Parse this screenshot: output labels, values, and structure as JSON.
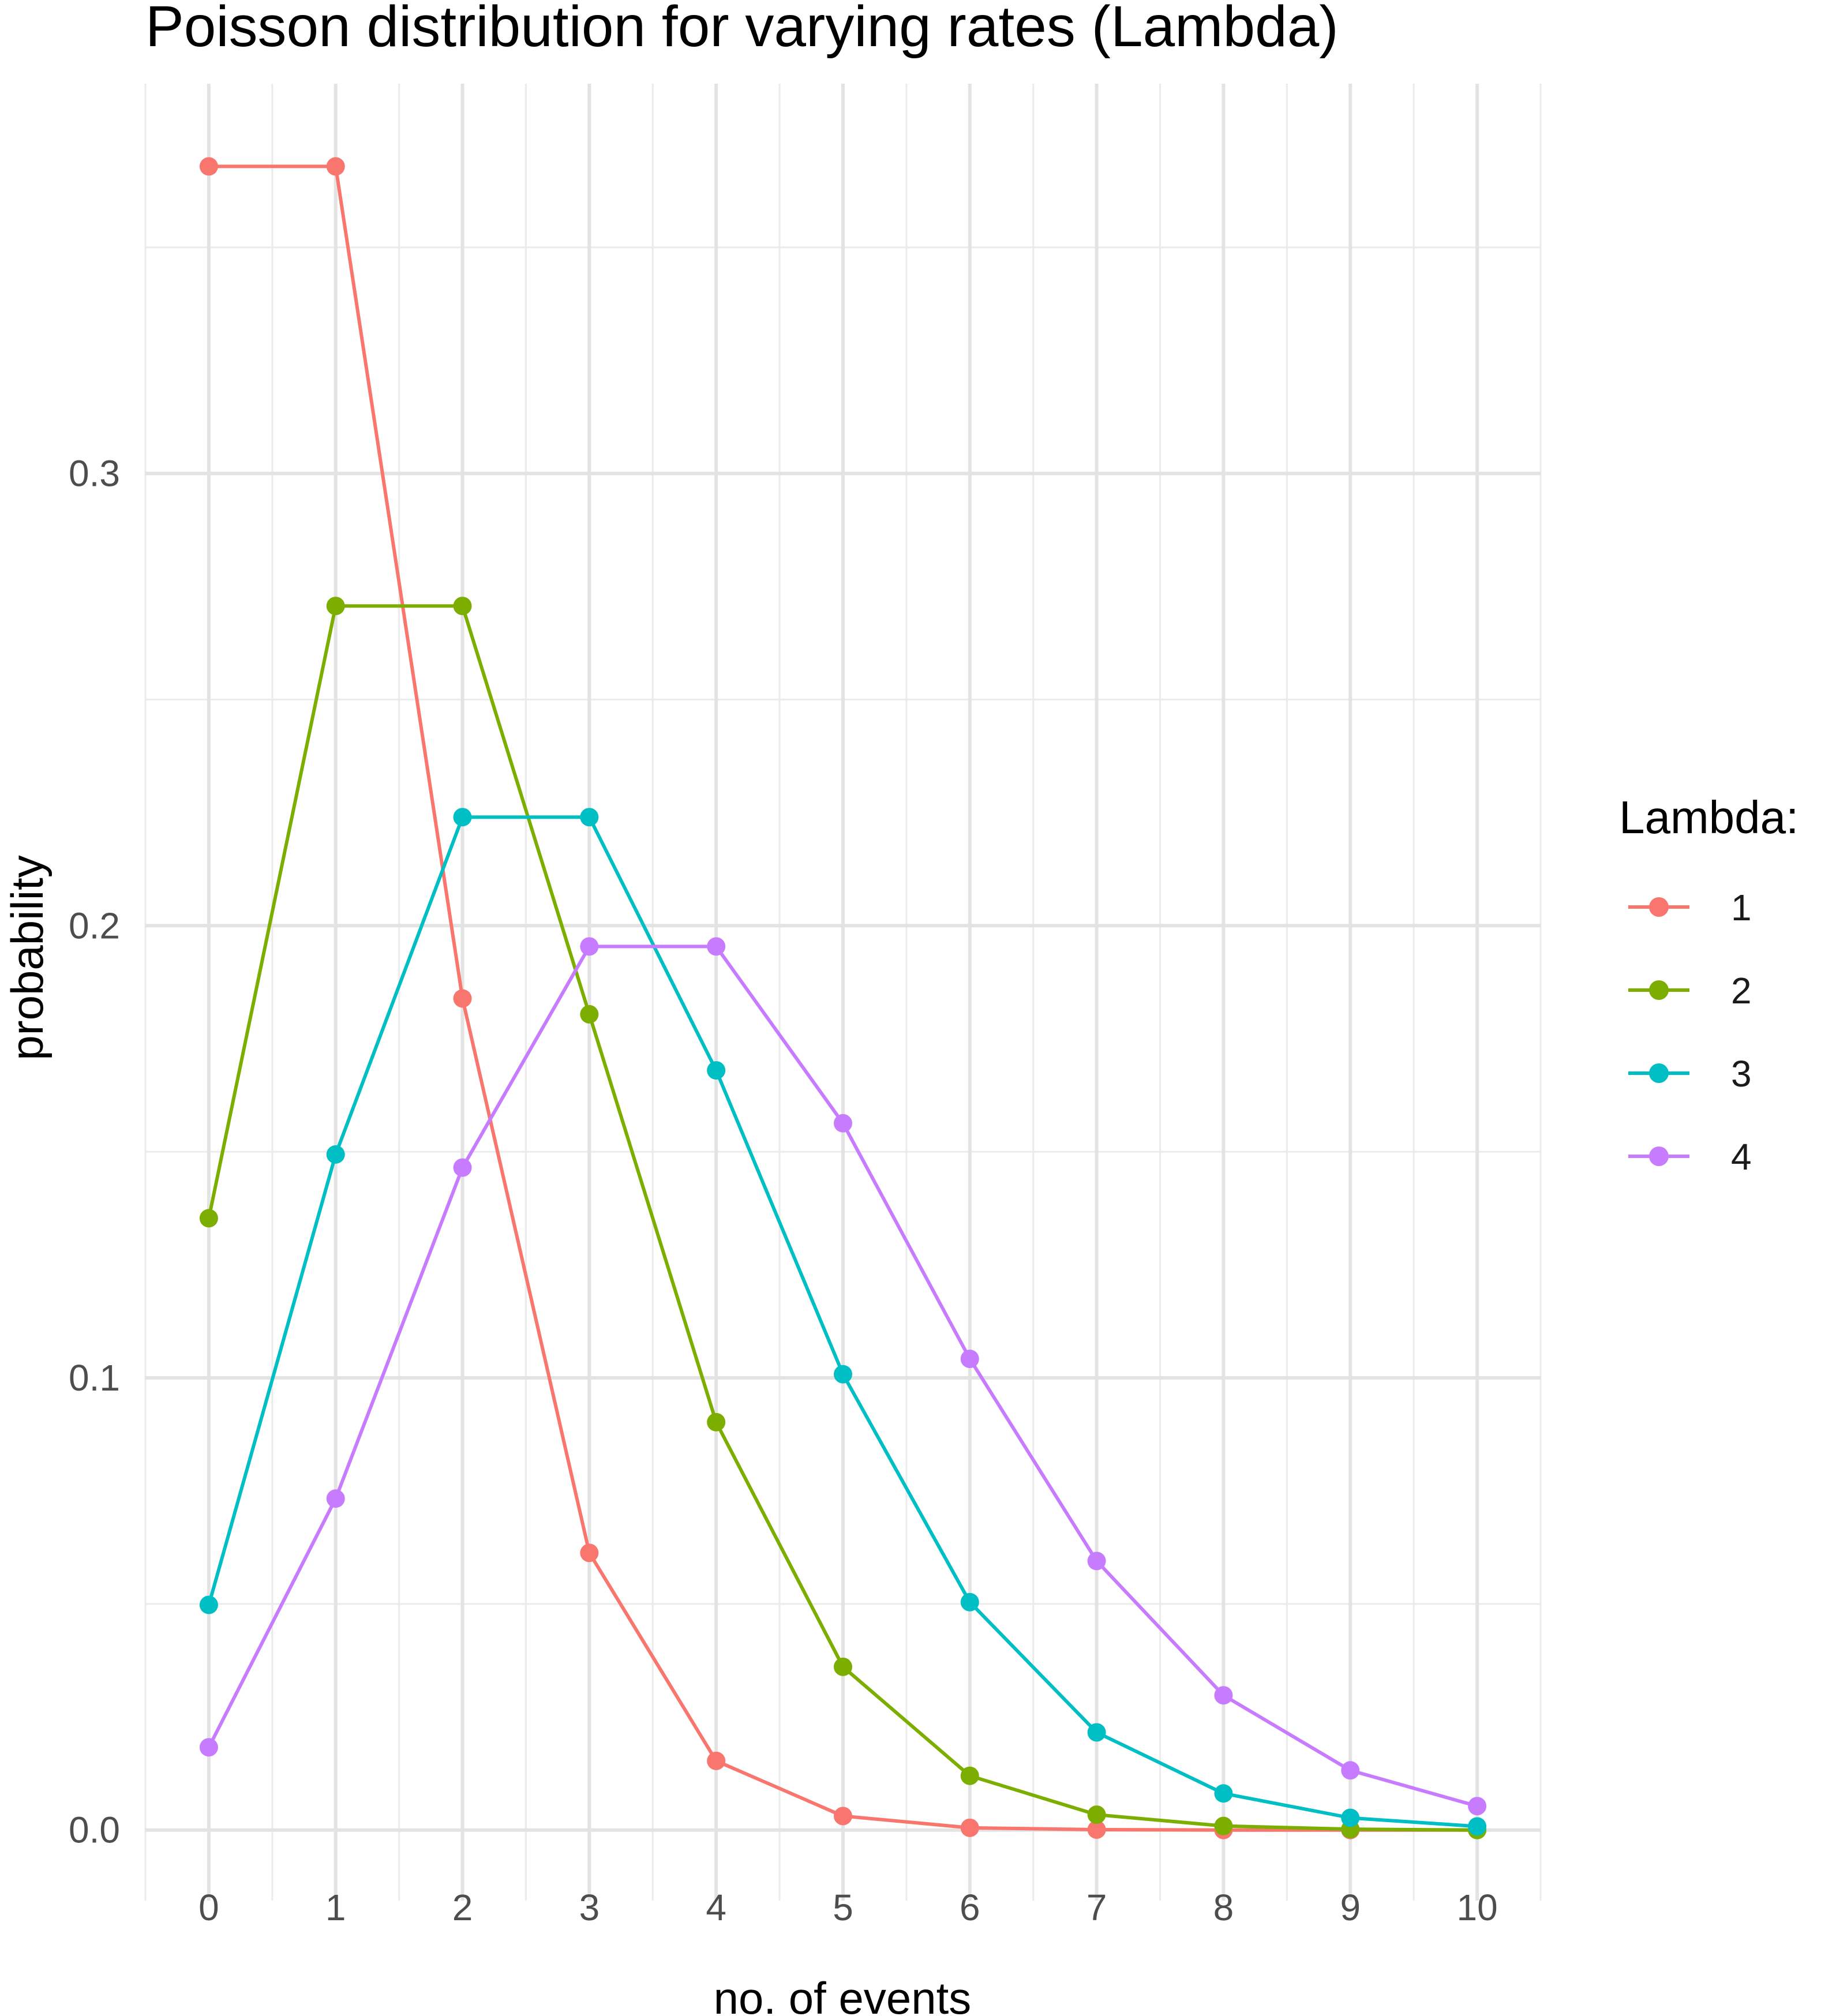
{
  "chart_data": {
    "type": "line",
    "title": "Poisson distribution for varying rates (Lambda)",
    "xlabel": "no. of events",
    "ylabel": "probability",
    "x": [
      0,
      1,
      2,
      3,
      4,
      5,
      6,
      7,
      8,
      9,
      10
    ],
    "x_ticks": [
      "0",
      "1",
      "2",
      "3",
      "4",
      "5",
      "6",
      "7",
      "8",
      "9",
      "10"
    ],
    "y_ticks": [
      {
        "value": 0.0,
        "label": "0.0"
      },
      {
        "value": 0.1,
        "label": "0.1"
      },
      {
        "value": 0.2,
        "label": "0.2"
      },
      {
        "value": 0.3,
        "label": "0.3"
      }
    ],
    "xlim": [
      -0.5,
      10.5
    ],
    "ylim": [
      -0.0156,
      0.3862
    ],
    "grid": true,
    "legend_position": "right",
    "legend_title": "Lambda:",
    "series": [
      {
        "name": "1",
        "color": "#F8766D",
        "values": [
          0.3679,
          0.3679,
          0.1839,
          0.0613,
          0.0153,
          0.0031,
          0.0005,
          0.0001,
          0.0,
          0.0,
          0.0
        ]
      },
      {
        "name": "2",
        "color": "#7CAE00",
        "values": [
          0.1353,
          0.2707,
          0.2707,
          0.1804,
          0.0902,
          0.0361,
          0.012,
          0.0034,
          0.0009,
          0.0002,
          0.0
        ]
      },
      {
        "name": "3",
        "color": "#00BFC4",
        "values": [
          0.0498,
          0.1494,
          0.224,
          0.224,
          0.168,
          0.1008,
          0.0504,
          0.0216,
          0.0081,
          0.0027,
          0.0008
        ]
      },
      {
        "name": "4",
        "color": "#C77CFF",
        "values": [
          0.0183,
          0.0733,
          0.1465,
          0.1954,
          0.1954,
          0.1563,
          0.1042,
          0.0595,
          0.0298,
          0.0132,
          0.0053
        ]
      }
    ]
  }
}
